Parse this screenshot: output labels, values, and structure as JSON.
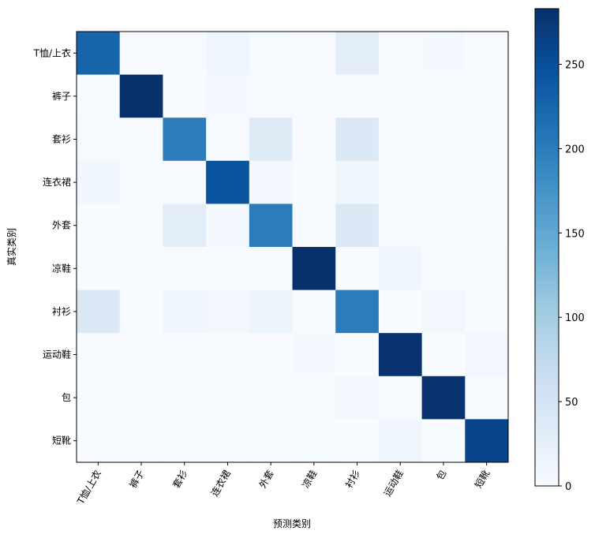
{
  "chart_data": {
    "type": "heatmap",
    "title": "",
    "xlabel": "预测类别",
    "ylabel": "真实类别",
    "x_categories": [
      "T恤/上衣",
      "裤子",
      "套衫",
      "连衣裙",
      "外套",
      "凉鞋",
      "衬衫",
      "运动鞋",
      "包",
      "短靴"
    ],
    "y_categories": [
      "T恤/上衣",
      "裤子",
      "套衫",
      "连衣裙",
      "外套",
      "凉鞋",
      "衬衫",
      "运动鞋",
      "包",
      "短靴"
    ],
    "matrix": [
      [
        225,
        0,
        0,
        12,
        1,
        0,
        30,
        0,
        5,
        0
      ],
      [
        1,
        283,
        0,
        5,
        3,
        0,
        0,
        0,
        0,
        0
      ],
      [
        2,
        0,
        200,
        0,
        35,
        0,
        40,
        0,
        3,
        0
      ],
      [
        10,
        0,
        2,
        245,
        6,
        0,
        12,
        0,
        0,
        0
      ],
      [
        0,
        0,
        30,
        5,
        200,
        0,
        40,
        0,
        3,
        0
      ],
      [
        0,
        0,
        0,
        0,
        0,
        283,
        0,
        10,
        0,
        3
      ],
      [
        40,
        0,
        10,
        8,
        15,
        0,
        200,
        0,
        8,
        1
      ],
      [
        0,
        0,
        0,
        0,
        0,
        5,
        0,
        280,
        0,
        8
      ],
      [
        0,
        0,
        0,
        3,
        0,
        2,
        8,
        0,
        280,
        0
      ],
      [
        0,
        0,
        0,
        0,
        0,
        3,
        0,
        12,
        0,
        260
      ]
    ],
    "colorbar": {
      "colormap": "Blues",
      "min": 0,
      "max": 283,
      "ticks": [
        0,
        50,
        100,
        150,
        200,
        250
      ]
    },
    "grid": false,
    "legend": "colorbar-right"
  }
}
